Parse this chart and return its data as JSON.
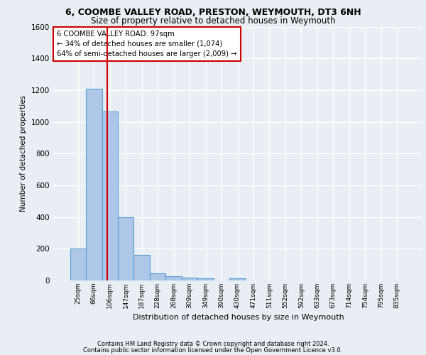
{
  "title1": "6, COOMBE VALLEY ROAD, PRESTON, WEYMOUTH, DT3 6NH",
  "title2": "Size of property relative to detached houses in Weymouth",
  "xlabel": "Distribution of detached houses by size in Weymouth",
  "ylabel": "Number of detached properties",
  "bar_labels": [
    "25sqm",
    "66sqm",
    "106sqm",
    "147sqm",
    "187sqm",
    "228sqm",
    "268sqm",
    "309sqm",
    "349sqm",
    "390sqm",
    "430sqm",
    "471sqm",
    "511sqm",
    "552sqm",
    "592sqm",
    "633sqm",
    "673sqm",
    "714sqm",
    "754sqm",
    "795sqm",
    "835sqm"
  ],
  "bar_values": [
    200,
    1210,
    1065,
    400,
    160,
    45,
    25,
    20,
    15,
    0,
    15,
    0,
    0,
    0,
    0,
    0,
    0,
    0,
    0,
    0,
    0
  ],
  "bar_color": "#aec6e8",
  "bar_edgecolor": "#5a9fd4",
  "vline_x": 1.85,
  "vline_color": "#cc0000",
  "annotation_line1": "6 COOMBE VALLEY ROAD: 97sqm",
  "annotation_line2": "← 34% of detached houses are smaller (1,074)",
  "annotation_line3": "64% of semi-detached houses are larger (2,009) →",
  "annotation_box_color": "#ffffff",
  "annotation_box_edgecolor": "#cc0000",
  "ylim": [
    0,
    1600
  ],
  "yticks": [
    0,
    200,
    400,
    600,
    800,
    1000,
    1200,
    1400,
    1600
  ],
  "bg_color": "#e8eef4",
  "axes_bg_color": "#e8eef4",
  "grid_color": "#ffffff",
  "footer1": "Contains HM Land Registry data © Crown copyright and database right 2024.",
  "footer2": "Contains public sector information licensed under the Open Government Licence v3.0."
}
